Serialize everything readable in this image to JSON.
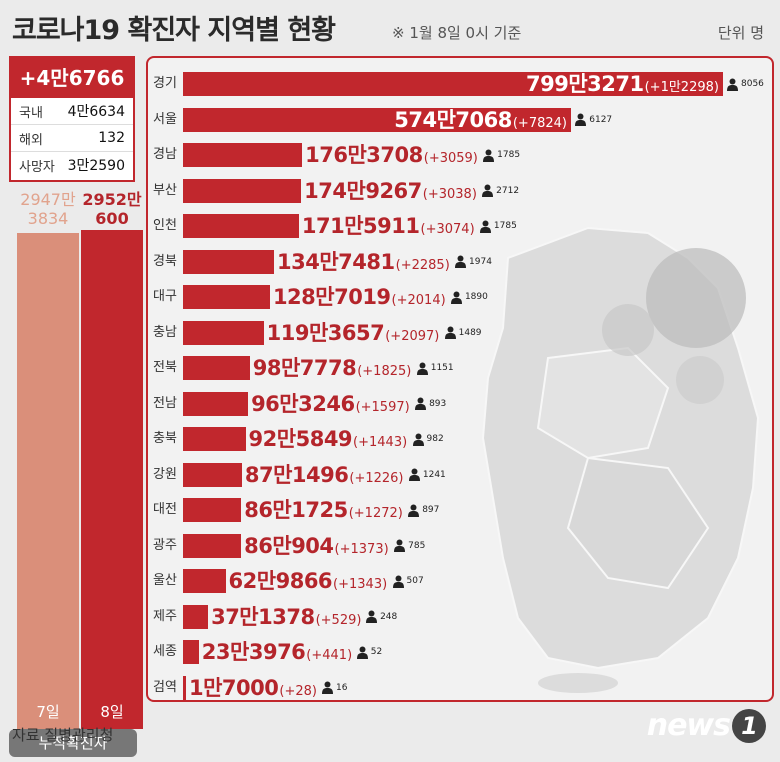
{
  "header": {
    "title": "코로나19 확진자 지역별 현황",
    "subtitle": "※ 1월 8일 0시 기준",
    "unit": "단위 명"
  },
  "summary": {
    "total_new": "+4만6766",
    "rows": [
      {
        "label": "국내",
        "value": "4만6634"
      },
      {
        "label": "해외",
        "value": "132"
      },
      {
        "label": "사망자",
        "value": "3만2590"
      }
    ]
  },
  "cumulative": {
    "prev": {
      "line1": "2947만",
      "line2": "3834",
      "day": "7일",
      "value": 29473834
    },
    "cur": {
      "line1": "2952만",
      "line2": "600",
      "day": "8일",
      "value": 29520600
    },
    "label": "누적확진자"
  },
  "chart_data": {
    "type": "bar",
    "categories": [
      "경기",
      "서울",
      "경남",
      "부산",
      "인천",
      "경북",
      "대구",
      "충남",
      "전북",
      "전남",
      "충북",
      "강원",
      "대전",
      "광주",
      "울산",
      "제주",
      "세종",
      "검역"
    ],
    "values": [
      7993271,
      5747068,
      1763708,
      1749267,
      1715911,
      1347481,
      1287019,
      1193657,
      987778,
      963246,
      925849,
      871496,
      861725,
      860904,
      629866,
      371378,
      233976,
      17000
    ],
    "labels": [
      "799만3271",
      "574만7068",
      "176만3708",
      "174만9267",
      "171만5911",
      "134만7481",
      "128만7019",
      "119만3657",
      "98만7778",
      "96만3246",
      "92만5849",
      "87만1496",
      "86만1725",
      "86만904",
      "62만9866",
      "37만1378",
      "23만3976",
      "1만7000"
    ],
    "increases": [
      "(+1만2298)",
      "(+7824)",
      "(+3059)",
      "(+3038)",
      "(+3074)",
      "(+2285)",
      "(+2014)",
      "(+2097)",
      "(+1825)",
      "(+1597)",
      "(+1443)",
      "(+1226)",
      "(+1272)",
      "(+1373)",
      "(+1343)",
      "(+529)",
      "(+441)",
      "(+28)"
    ],
    "deaths": [
      "8056",
      "6127",
      "1785",
      "2712",
      "1785",
      "1974",
      "1890",
      "1489",
      "1151",
      "893",
      "982",
      "1241",
      "897",
      "785",
      "507",
      "248",
      "52",
      "16"
    ]
  },
  "colors": {
    "accent": "#c1272d",
    "prev_bar": "#da8f7a",
    "background": "#ebebeb"
  },
  "footer": {
    "source": "자료 질병관리청",
    "logo": "news",
    "logo_mark": "1"
  }
}
